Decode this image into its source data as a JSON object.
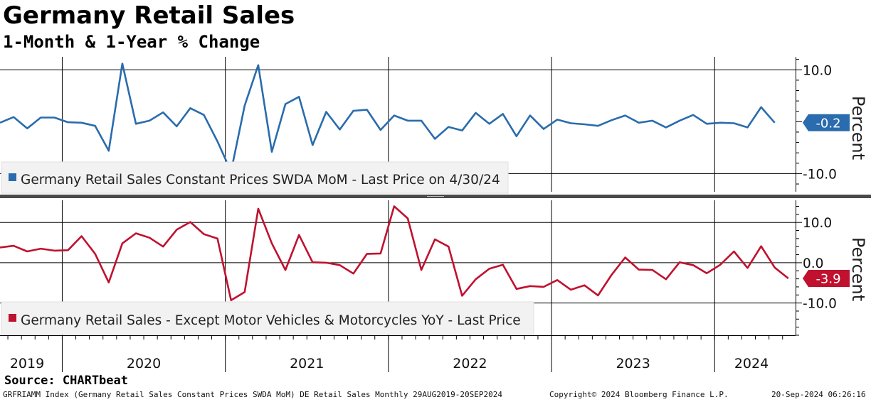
{
  "title": "Germany Retail Sales",
  "subtitle": "1-Month & 1-Year % Change",
  "source": "Source: CHARTbeat",
  "footer": {
    "left": "GRFRIAMM Index (Germany Retail Sales Constant Prices SWDA MoM) DE Retail Sales  Monthly 29AUG2019-20SEP2024",
    "center": "Copyright© 2024 Bloomberg Finance L.P.",
    "right": "20-Sep-2024 06:26:16"
  },
  "colors": {
    "top": "#2a6cad",
    "bottom": "#c0112f"
  },
  "chart_data": [
    {
      "type": "line",
      "name": "top-panel",
      "series_name": "Germany Retail Sales Constant Prices SWDA MoM - Last Price on 4/30/24",
      "ylabel": "Percent",
      "yticks": [
        "10.0",
        "-10.0"
      ],
      "ytick_values": [
        10,
        -10
      ],
      "ylim": [
        -13.5,
        12.5
      ],
      "last_value": -0.2,
      "last_label": "-0.2",
      "x_start": "2019-08",
      "values": [
        -0.2,
        0.9,
        -1.3,
        0.8,
        0.8,
        -0.1,
        -0.2,
        -0.8,
        -5.6,
        11.2,
        -0.4,
        0.2,
        1.8,
        -0.9,
        2.6,
        1.3,
        -3.8,
        -9.6,
        3.1,
        10.9,
        -5.8,
        3.4,
        4.8,
        -4.5,
        1.9,
        -1.5,
        2.1,
        2.3,
        -1.6,
        1.2,
        0.2,
        0.2,
        -3.3,
        -1.0,
        -1.7,
        1.7,
        -0.4,
        1.5,
        -2.8,
        1.2,
        -1.4,
        0.4,
        -0.3,
        -0.5,
        -0.8,
        0.3,
        1.2,
        -0.2,
        0.2,
        -1.1,
        0.2,
        1.3,
        -0.4,
        -0.2,
        -0.3,
        -1.1,
        2.8,
        -0.2
      ],
      "categories_years": [
        "2019",
        "2020",
        "2021",
        "2022",
        "2023",
        "2024"
      ]
    },
    {
      "type": "line",
      "name": "bottom-panel",
      "series_name": "Germany Retail Sales - Except Motor Vehicles & Motorcycles YoY - Last Price",
      "ylabel": "Percent",
      "yticks": [
        "10.0",
        "0.0",
        "-10.0"
      ],
      "ytick_values": [
        10,
        0,
        -10
      ],
      "ylim": [
        -18,
        15.5
      ],
      "last_value": -3.9,
      "last_label": "-3.9",
      "x_start": "2019-08",
      "values": [
        3.8,
        4.2,
        2.8,
        3.5,
        3.0,
        3.1,
        6.6,
        2.2,
        -4.9,
        4.8,
        7.3,
        6.2,
        4.0,
        8.2,
        10.1,
        7.1,
        6.0,
        -9.3,
        -7.3,
        13.4,
        4.8,
        -1.8,
        6.9,
        0.1,
        0.0,
        -0.6,
        -2.7,
        2.2,
        2.3,
        14.0,
        11.0,
        -1.8,
        5.8,
        4.0,
        -8.2,
        -4.1,
        -1.5,
        -0.5,
        -6.5,
        -5.8,
        -6.0,
        -4.3,
        -6.7,
        -5.6,
        -8.1,
        -3.0,
        1.3,
        -1.7,
        -1.8,
        -4.1,
        0.1,
        -0.6,
        -2.6,
        -0.5,
        2.8,
        -1.3,
        4.1,
        -1.2,
        -3.9
      ],
      "categories_years": [
        "2019",
        "2020",
        "2021",
        "2022",
        "2023",
        "2024"
      ]
    }
  ]
}
